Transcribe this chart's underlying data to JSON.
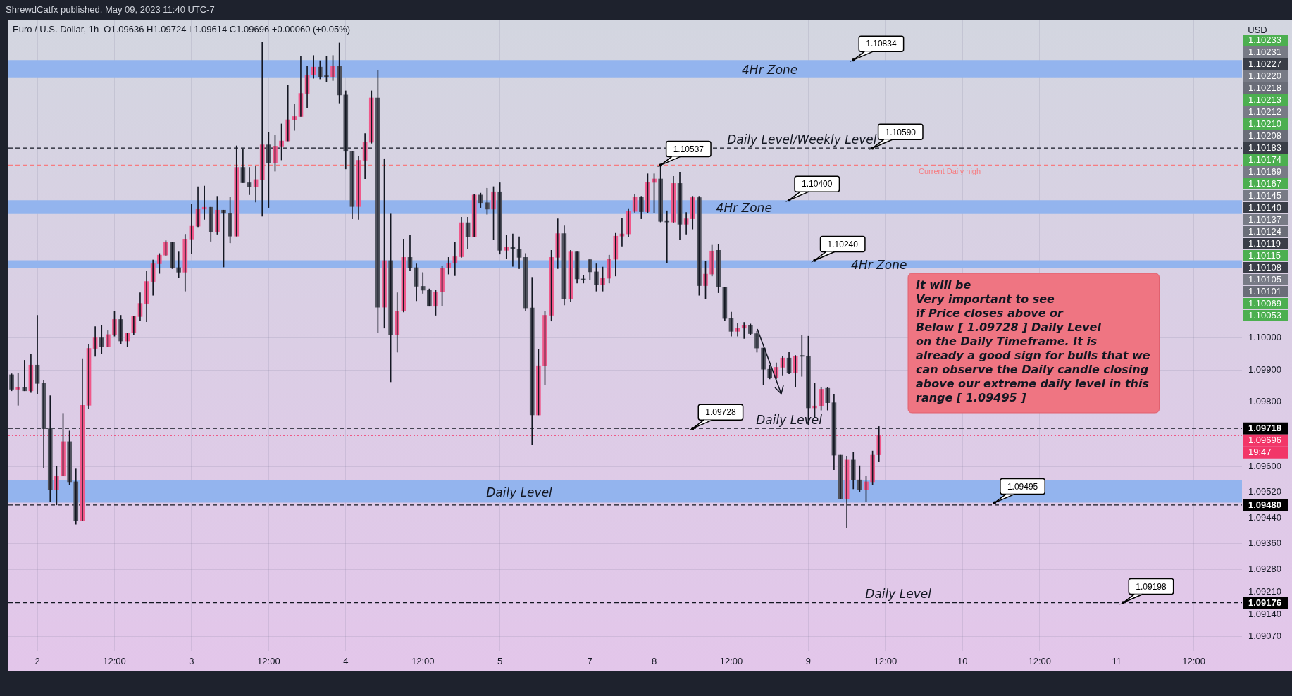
{
  "chart_data": {
    "type": "candlestick",
    "title": "Euro / U.S. Dollar, 1h",
    "subtitle": "O1.09636 H1.09724 L1.09614 C1.09696 +0.00060 (+0.05%)",
    "ylabel": "USD",
    "categories": [
      null,
      null,
      null,
      null,
      "2",
      null,
      null,
      null,
      null,
      null,
      null,
      null,
      null,
      null,
      null,
      null,
      "12:00",
      null,
      null,
      null,
      null,
      null,
      null,
      null,
      null,
      null,
      null,
      null,
      "3",
      null,
      null,
      null,
      null,
      null,
      null,
      null,
      null,
      null,
      null,
      null,
      "12:00",
      null,
      null,
      null,
      null,
      null,
      null,
      null,
      null,
      null,
      null,
      null,
      "4",
      null,
      null,
      null,
      null,
      null,
      null,
      null,
      null,
      null,
      null,
      null,
      "12:00",
      null,
      null,
      null,
      null,
      null,
      null,
      null,
      null,
      null,
      null,
      null,
      "5",
      null,
      null,
      null,
      null,
      null,
      null,
      null,
      null,
      null,
      null,
      null,
      null,
      null,
      "7",
      null,
      null,
      null,
      null,
      null,
      null,
      null,
      null,
      null,
      "8",
      null,
      null,
      null,
      null,
      null,
      null,
      null,
      null,
      null,
      null,
      null,
      "12:00",
      null,
      null,
      null,
      null,
      null,
      null,
      null,
      null,
      null,
      null,
      null,
      "9",
      null,
      null,
      null,
      null,
      null,
      null,
      null,
      null,
      null,
      null,
      null,
      "12:00",
      null,
      null,
      null,
      null,
      null,
      null,
      null,
      null,
      null,
      null,
      null,
      "10",
      null,
      null,
      null,
      null,
      null,
      null,
      null,
      null,
      null,
      null,
      null,
      "12:00",
      null,
      null,
      null,
      null,
      null,
      null,
      null,
      null,
      null,
      null,
      null,
      "11",
      null,
      null,
      null,
      null,
      null,
      null,
      null,
      null,
      null,
      null,
      null,
      "12:00",
      null,
      null,
      null,
      null,
      null,
      null,
      null
    ],
    "ohlc": [
      [
        1.09885,
        1.09888,
        1.09835,
        1.0984
      ],
      [
        1.0984,
        1.0989,
        1.0979,
        1.09845
      ],
      [
        1.09845,
        1.0993,
        1.09835,
        1.09835
      ],
      [
        1.09835,
        1.0995,
        1.0983,
        1.09915
      ],
      [
        1.09915,
        1.1007,
        1.09825,
        1.09858
      ],
      [
        1.09858,
        1.09868,
        1.09595,
        1.09717
      ],
      [
        1.09717,
        1.0982,
        1.0949,
        1.09528
      ],
      [
        1.09528,
        1.096,
        1.0948,
        1.0957
      ],
      [
        1.0957,
        1.09765,
        1.0957,
        1.09677
      ],
      [
        1.09677,
        1.0971,
        1.09542,
        1.09552
      ],
      [
        1.09552,
        1.09592,
        1.0942,
        1.09432
      ],
      [
        1.09432,
        1.09935,
        1.0943,
        1.0979
      ],
      [
        1.0979,
        1.0998,
        1.0978,
        1.09967
      ],
      [
        1.09967,
        1.10035,
        1.09942,
        1.1
      ],
      [
        1.1,
        1.10038,
        1.0995,
        1.09973
      ],
      [
        1.09973,
        1.10022,
        1.09972,
        1.1001
      ],
      [
        1.1001,
        1.10082,
        1.10005,
        1.10057
      ],
      [
        1.10057,
        1.1007,
        1.0998,
        1.0999
      ],
      [
        1.0999,
        1.10015,
        1.09973,
        1.10015
      ],
      [
        1.10015,
        1.10066,
        1.1001,
        1.10066
      ],
      [
        1.10066,
        1.1014,
        1.10053,
        1.10107
      ],
      [
        1.10107,
        1.10208,
        1.1005,
        1.10175
      ],
      [
        1.10175,
        1.10242,
        1.10132,
        1.1023
      ],
      [
        1.1023,
        1.10262,
        1.102,
        1.10257
      ],
      [
        1.10257,
        1.10302,
        1.10254,
        1.10298
      ],
      [
        1.10298,
        1.10298,
        1.10215,
        1.10218
      ],
      [
        1.10218,
        1.10267,
        1.10187,
        1.10204
      ],
      [
        1.10204,
        1.10322,
        1.10145,
        1.10307
      ],
      [
        1.10307,
        1.10415,
        1.10262,
        1.10347
      ],
      [
        1.10347,
        1.1047,
        1.10345,
        1.104
      ],
      [
        1.104,
        1.10472,
        1.10368,
        1.10406
      ],
      [
        1.10406,
        1.10406,
        1.103,
        1.1033
      ],
      [
        1.1033,
        1.1044,
        1.10322,
        1.10397
      ],
      [
        1.10397,
        1.10397,
        1.1022,
        1.10387
      ],
      [
        1.10387,
        1.10438,
        1.10295,
        1.10316
      ],
      [
        1.10316,
        1.10597,
        1.10316,
        1.1053
      ],
      [
        1.1053,
        1.10588,
        1.10482,
        1.10482
      ],
      [
        1.10482,
        1.1053,
        1.10445,
        1.1047
      ],
      [
        1.1047,
        1.10535,
        1.10422,
        1.10492
      ],
      [
        1.10492,
        1.1092,
        1.10378,
        1.106
      ],
      [
        1.106,
        1.1064,
        1.10405,
        1.10545
      ],
      [
        1.10545,
        1.1063,
        1.10518,
        1.10596
      ],
      [
        1.10596,
        1.10665,
        1.10553,
        1.10612
      ],
      [
        1.10612,
        1.10785,
        1.10612,
        1.10678
      ],
      [
        1.10678,
        1.10728,
        1.10645,
        1.10688
      ],
      [
        1.10688,
        1.10875,
        1.10688,
        1.1076
      ],
      [
        1.1076,
        1.10845,
        1.10715,
        1.10817
      ],
      [
        1.10817,
        1.10878,
        1.10807,
        1.10842
      ],
      [
        1.10842,
        1.10862,
        1.10805,
        1.10812
      ],
      [
        1.10815,
        1.10875,
        1.10797,
        1.10812
      ],
      [
        1.10812,
        1.10878,
        1.108,
        1.10844
      ],
      [
        1.10844,
        1.10917,
        1.1073,
        1.10755
      ],
      [
        1.10755,
        1.10768,
        1.10525,
        1.1058
      ],
      [
        1.1058,
        1.1058,
        1.1037,
        1.10408
      ],
      [
        1.10408,
        1.10565,
        1.10368,
        1.10552
      ],
      [
        1.10552,
        1.10635,
        1.10495,
        1.10608
      ],
      [
        1.10608,
        1.10768,
        1.10605,
        1.10746
      ],
      [
        1.10746,
        1.10832,
        1.10015,
        1.10095
      ],
      [
        1.10095,
        1.10557,
        1.1003,
        1.1024
      ],
      [
        1.1024,
        1.10385,
        1.09863,
        1.1001
      ],
      [
        1.1001,
        1.1014,
        1.09955,
        1.10083
      ],
      [
        1.10083,
        1.10307,
        1.1008,
        1.1025
      ],
      [
        1.1025,
        1.10318,
        1.1021,
        1.10218
      ],
      [
        1.10218,
        1.1023,
        1.10115,
        1.1016
      ],
      [
        1.1016,
        1.10203,
        1.10138,
        1.10148
      ],
      [
        1.10148,
        1.10152,
        1.10098,
        1.10098
      ],
      [
        1.10098,
        1.10148,
        1.1007,
        1.10142
      ],
      [
        1.10142,
        1.10222,
        1.10098,
        1.10217
      ],
      [
        1.10217,
        1.1025,
        1.10198,
        1.10232
      ],
      [
        1.10232,
        1.10298,
        1.10193,
        1.10252
      ],
      [
        1.10252,
        1.10375,
        1.1025,
        1.10358
      ],
      [
        1.10358,
        1.10375,
        1.10278,
        1.10314
      ],
      [
        1.10314,
        1.10447,
        1.10314,
        1.10444
      ],
      [
        1.10444,
        1.1045,
        1.10405,
        1.1042
      ],
      [
        1.1042,
        1.10465,
        1.10384,
        1.104
      ],
      [
        1.104,
        1.1047,
        1.10305,
        1.10454
      ],
      [
        1.10454,
        1.10482,
        1.1026,
        1.10272
      ],
      [
        1.10272,
        1.10318,
        1.10245,
        1.10282
      ],
      [
        1.10282,
        1.10323,
        1.10222,
        1.10277
      ],
      [
        1.10275,
        1.10314,
        1.10215,
        1.1025
      ],
      [
        1.1025,
        1.10262,
        1.10085,
        1.10093
      ],
      [
        1.10093,
        1.10188,
        1.09668,
        1.0976
      ],
      [
        1.0976,
        1.09965,
        1.0976,
        1.09913
      ],
      [
        1.09913,
        1.10082,
        1.09853,
        1.1007
      ],
      [
        1.1007,
        1.10272,
        1.10052,
        1.1025
      ],
      [
        1.1025,
        1.1037,
        1.10215,
        1.10324
      ],
      [
        1.10324,
        1.10348,
        1.10102,
        1.1012
      ],
      [
        1.1012,
        1.10272,
        1.10112,
        1.10267
      ],
      [
        1.10267,
        1.10267,
        1.1017,
        1.10183
      ],
      [
        1.10183,
        1.10195,
        1.1017,
        1.1018
      ],
      [
        1.10243,
        1.10243,
        1.1018,
        1.10205
      ],
      [
        1.10205,
        1.1023,
        1.10145,
        1.10165
      ],
      [
        1.10165,
        1.1022,
        1.10145,
        1.10185
      ],
      [
        1.10185,
        1.10257,
        1.1017,
        1.10244
      ],
      [
        1.10244,
        1.10325,
        1.10192,
        1.10316
      ],
      [
        1.10316,
        1.10373,
        1.10285,
        1.10323
      ],
      [
        1.10323,
        1.10402,
        1.10315,
        1.10393
      ],
      [
        1.10393,
        1.10447,
        1.1039,
        1.10437
      ],
      [
        1.10437,
        1.1044,
        1.1037,
        1.10392
      ],
      [
        1.10392,
        1.1051,
        1.10388,
        1.10483
      ],
      [
        1.10483,
        1.1051,
        1.10388,
        1.10494
      ],
      [
        1.10494,
        1.10537,
        1.1036,
        1.10362
      ],
      [
        1.10362,
        1.10395,
        1.10232,
        1.1036
      ],
      [
        1.1036,
        1.10502,
        1.10358,
        1.1048
      ],
      [
        1.1048,
        1.10515,
        1.10305,
        1.10353
      ],
      [
        1.10353,
        1.1039,
        1.10322,
        1.1037
      ],
      [
        1.1037,
        1.1044,
        1.10338,
        1.10436
      ],
      [
        1.10436,
        1.1044,
        1.10132,
        1.10162
      ],
      [
        1.10162,
        1.10238,
        1.1012,
        1.10198
      ],
      [
        1.10198,
        1.10288,
        1.10192,
        1.1027
      ],
      [
        1.10272,
        1.1029,
        1.1014,
        1.10158
      ],
      [
        1.10157,
        1.10157,
        1.10052,
        1.1006
      ],
      [
        1.1006,
        1.1008,
        1.10005,
        1.1002
      ],
      [
        1.1002,
        1.10045,
        1.10005,
        1.1003
      ],
      [
        1.1003,
        1.10048,
        1.09998,
        1.10039
      ],
      [
        1.10039,
        1.10043,
        1.1001,
        1.10013
      ],
      [
        1.10013,
        1.1002,
        1.09955,
        1.09968
      ],
      [
        1.09968,
        1.09968,
        1.09855,
        1.09902
      ],
      [
        1.09902,
        1.09915,
        1.09872,
        1.09875
      ],
      [
        1.09875,
        1.09922,
        1.09872,
        1.09908
      ],
      [
        1.09908,
        1.09942,
        1.09882,
        1.09937
      ],
      [
        1.09937,
        1.09955,
        1.09888,
        1.0989
      ],
      [
        1.0989,
        1.09945,
        1.09848,
        1.09943
      ],
      [
        1.09945,
        1.10008,
        1.0988,
        1.09942
      ],
      [
        1.09942,
        1.10005,
        1.0973,
        1.09782
      ],
      [
        1.09782,
        1.0986,
        1.0975,
        1.09788
      ],
      [
        1.09788,
        1.09845,
        1.09775,
        1.0984
      ],
      [
        1.09843,
        1.09845,
        1.09775,
        1.09798
      ],
      [
        1.09798,
        1.09825,
        1.0959,
        1.09635
      ],
      [
        1.09635,
        1.09635,
        1.09498,
        1.095
      ],
      [
        1.095,
        1.0963,
        1.0941,
        1.0962
      ],
      [
        1.0962,
        1.09645,
        1.0953,
        1.09558
      ],
      [
        1.09558,
        1.09602,
        1.09522,
        1.09528
      ],
      [
        1.09528,
        1.0957,
        1.0949,
        1.09552
      ],
      [
        1.09552,
        1.09648,
        1.09542,
        1.09635
      ],
      [
        1.09636,
        1.09724,
        1.09614,
        1.09696
      ],
      null,
      null,
      null,
      null,
      null,
      null,
      null,
      null,
      null,
      null,
      null,
      null,
      null,
      null,
      null,
      null,
      null,
      null,
      null,
      null,
      null,
      null,
      null,
      null,
      null,
      null,
      null,
      null,
      null,
      null,
      null,
      null,
      null,
      null,
      null,
      null,
      null,
      null,
      null,
      null,
      null,
      null,
      null,
      null,
      null,
      null,
      null,
      null,
      null,
      null,
      null,
      null,
      null,
      null,
      null,
      null
    ],
    "ylim": [
      1.09026,
      1.10987
    ],
    "yticks": [
      {
        "value": 1.1,
        "label": "1.10000"
      },
      {
        "value": 1.099,
        "label": "1.09900"
      },
      {
        "value": 1.098,
        "label": "1.09800"
      },
      {
        "value": 1.096,
        "label": "1.09600"
      },
      {
        "value": 1.0952,
        "label": "1.09520"
      },
      {
        "value": 1.0944,
        "label": "1.09440"
      },
      {
        "value": 1.0936,
        "label": "1.09360"
      },
      {
        "value": 1.0928,
        "label": "1.09280"
      },
      {
        "value": 1.0921,
        "label": "1.09210"
      },
      {
        "value": 1.0914,
        "label": "1.09140"
      },
      {
        "value": 1.0907,
        "label": "1.09070"
      }
    ],
    "grid": true,
    "ref_lines": [
      {
        "axis": "y",
        "value": 1.1059,
        "label": "Daily Level/Weekly Level",
        "color": "#131722",
        "line_style": "dashed"
      },
      {
        "axis": "y",
        "value": 1.10537,
        "label": "Current Daily high",
        "color": "#f77c80",
        "line_style": "dashed"
      },
      {
        "axis": "y",
        "value": 1.09718,
        "label": "Daily Level",
        "color": "#131722",
        "line_style": "dashed"
      },
      {
        "axis": "y",
        "value": 1.09696,
        "color": "#f23668",
        "line_style": "dotted"
      },
      {
        "axis": "y",
        "value": 1.0948,
        "color": "#131722",
        "line_style": "dashed"
      },
      {
        "axis": "y",
        "value": 1.09176,
        "label": "Daily Level",
        "color": "#131722",
        "line_style": "dashed"
      }
    ],
    "bands": [
      {
        "axis": "y",
        "from": 1.10808,
        "to": 1.10864,
        "label": "4Hr Zone",
        "color": "#93b4ee"
      },
      {
        "axis": "y",
        "from": 1.10385,
        "to": 1.10428,
        "label": "4Hr Zone",
        "color": "#93b4ee"
      },
      {
        "axis": "y",
        "from": 1.10218,
        "to": 1.10241,
        "label": "4Hr Zone",
        "color": "#93b4ee"
      },
      {
        "axis": "y",
        "from": 1.09487,
        "to": 1.09556,
        "label": "Daily Level",
        "color": "#93b4ee"
      }
    ],
    "annotations": [
      "ShrewdCatfx published, May 09, 2023 11:40 UTC-7",
      "1.10233",
      "1.10231",
      "1.10227",
      "1.10220",
      "1.10218",
      "1.10213",
      "1.10212",
      "1.10210",
      "1.10208",
      "1.10183",
      "1.10174",
      "1.10169",
      "1.10167",
      "1.10145",
      "1.10140",
      "1.10137",
      "1.10124",
      "1.10119",
      "1.10115",
      "1.10108",
      "1.10105",
      "1.10101",
      "1.10069",
      "1.10053",
      "1.10834",
      "1.10590",
      "1.10537",
      "1.10400",
      "1.10240",
      "1.09728",
      "1.09495",
      "1.09198",
      "1.09718",
      "1.09696",
      "19:47",
      "1.09480",
      "1.09176",
      "It will be\nVery important to see\nif Price closes above or\nBelow [ 1.09728 ] Daily Level\non the Daily Timeframe. It is\nalready a good sign for bulls that we\ncan observe the Daily candle closing\nabove our extreme daily level in this\nrange [ 1.09495 ]"
    ]
  }
}
